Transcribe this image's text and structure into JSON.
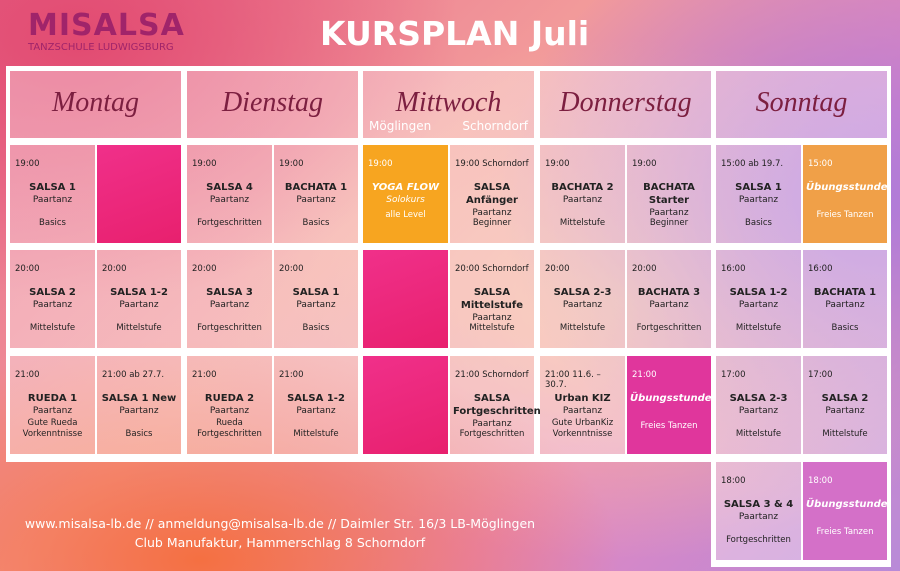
{
  "header": {
    "logo": "MISALSA",
    "logo_sub": "TANZSCHULE LUDWIGSBURG",
    "title": "KURSPLAN Juli"
  },
  "days": [
    {
      "name": "Montag",
      "rows": [
        [
          {
            "time": "19:00",
            "title": "SALSA 1",
            "type": "Paartanz",
            "level": "Basics"
          },
          null
        ],
        [
          {
            "time": "20:00",
            "title": "SALSA 2",
            "type": "Paartanz",
            "level": "Mittelstufe"
          },
          {
            "time": "20:00",
            "title": "SALSA 1-2",
            "type": "Paartanz",
            "level": "Mittelstufe"
          }
        ],
        [
          {
            "time": "21:00",
            "title": "RUEDA 1",
            "type": "Paartanz",
            "level": "Gute Rueda Vorkenntnisse"
          },
          {
            "time": "21:00 ab 27.7.",
            "title": "SALSA 1 New",
            "type": "Paartanz",
            "level": "Basics"
          }
        ]
      ]
    },
    {
      "name": "Dienstag",
      "rows": [
        [
          {
            "time": "19:00",
            "title": "SALSA 4",
            "type": "Paartanz",
            "level": "Fortgeschritten"
          },
          {
            "time": "19:00",
            "title": "BACHATA 1",
            "type": "Paartanz",
            "level": "Basics"
          }
        ],
        [
          {
            "time": "20:00",
            "title": "SALSA 3",
            "type": "Paartanz",
            "level": "Fortgeschritten"
          },
          {
            "time": "20:00",
            "title": "SALSA 1",
            "type": "Paartanz",
            "level": "Basics"
          }
        ],
        [
          {
            "time": "21:00",
            "title": "RUEDA  2",
            "type": "Paartanz",
            "level": "Rueda Fortgeschritten"
          },
          {
            "time": "21:00",
            "title": "SALSA 1-2",
            "type": "Paartanz",
            "level": "Mittelstufe"
          }
        ]
      ]
    },
    {
      "name": "Mittwoch",
      "subs": [
        "Möglingen",
        "Schorndorf"
      ],
      "rows": [
        [
          {
            "time": "19:00",
            "title": "YOGA FLOW",
            "type": "Solokurs",
            "level": "alle Level",
            "color": "#f7a520"
          },
          {
            "time": "19:00 Schorndorf",
            "title": "SALSA Anfänger",
            "type": "Paartanz",
            "level": "Beginner"
          }
        ],
        [
          null,
          {
            "time": "20:00 Schorndorf",
            "title": "SALSA Mittelstufe",
            "type": "Paartanz",
            "level": "Mittelstufe"
          }
        ],
        [
          null,
          {
            "time": "21:00 Schorndorf",
            "title": "SALSA Fortgeschritten",
            "type": "Paartanz",
            "level": "Fortgeschritten"
          }
        ]
      ]
    },
    {
      "name": "Donnerstag",
      "rows": [
        [
          {
            "time": "19:00",
            "title": "BACHATA 2",
            "type": "Paartanz",
            "level": "Mittelstufe"
          },
          {
            "time": "19:00",
            "title": "BACHATA Starter",
            "type": "Paartanz",
            "level": "Beginner"
          }
        ],
        [
          {
            "time": "20:00",
            "title": "SALSA 2-3",
            "type": "Paartanz",
            "level": "Mittelstufe"
          },
          {
            "time": "20:00",
            "title": "BACHATA 3",
            "type": "Paartanz",
            "level": "Fortgeschritten"
          }
        ],
        [
          {
            "time": "21:00 11.6. – 30.7.",
            "title": "Urban KIZ",
            "type": "Paartanz",
            "level": "Gute UrbanKiz Vorkenntnisse"
          },
          {
            "time": "21:00",
            "title": "Übungsstunde",
            "level": "Freies Tanzen",
            "color": "#e0369c"
          }
        ]
      ]
    },
    {
      "name": "Sonntag",
      "rows": [
        [
          {
            "time": "15:00 ab 19.7.",
            "title": "SALSA 1",
            "type": "Paartanz",
            "level": "Basics"
          },
          {
            "time": "15:00",
            "title": "Übungsstunde",
            "level": "Freies Tanzen",
            "color": "#f0a048"
          }
        ],
        [
          {
            "time": "16:00",
            "title": "SALSA 1-2",
            "type": "Paartanz",
            "level": "Mittelstufe"
          },
          {
            "time": "16:00",
            "title": "BACHATA 1",
            "type": "Paartanz",
            "level": "Basics"
          }
        ],
        [
          {
            "time": "17:00",
            "title": "SALSA 2-3",
            "type": "Paartanz",
            "level": "Mittelstufe"
          },
          {
            "time": "17:00",
            "title": "SALSA 2",
            "type": "Paartanz",
            "level": "Mittelstufe"
          }
        ],
        [
          {
            "time": "18:00",
            "title": "SALSA 3 & 4",
            "type": "Paartanz",
            "level": "Fortgeschritten"
          },
          {
            "time": "18:00",
            "title": "Übungsstunde",
            "level": "Freies Tanzen",
            "color": "#d470c8"
          }
        ]
      ]
    }
  ],
  "footer": [
    "www.misalsa-lb.de // anmeldung@misalsa-lb.de // Daimler Str. 16/3 LB-Möglingen",
    "Club Manufaktur, Hammerschlag 8 Schorndorf"
  ]
}
